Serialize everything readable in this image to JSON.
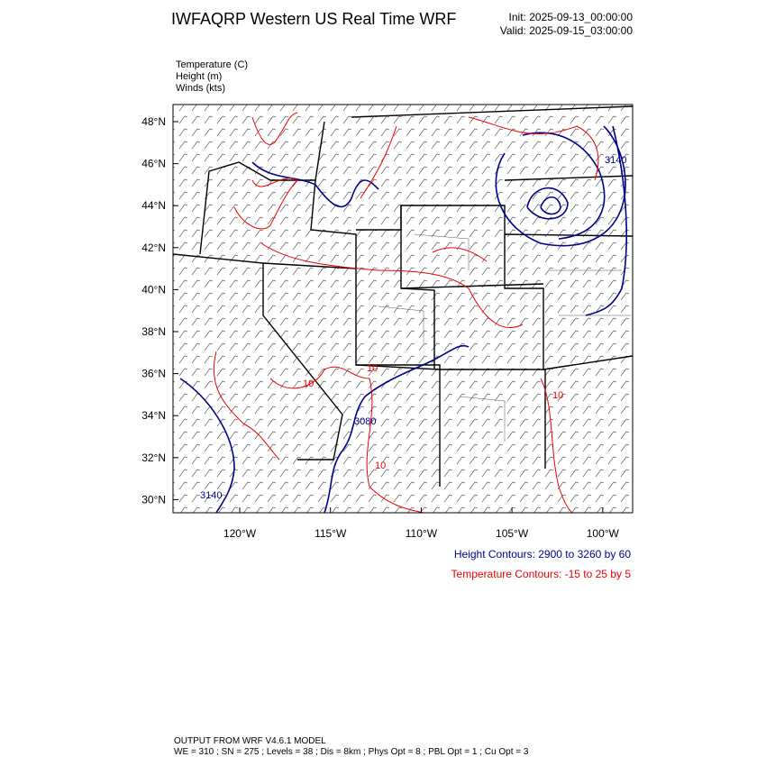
{
  "header": {
    "title": "IWFAQRP Western US Real Time WRF",
    "init": "Init: 2025-09-13_00:00:00",
    "valid": "Valid: 2025-09-15_03:00:00"
  },
  "fields": [
    "Temperature   (C)",
    "Height   (m)",
    "Winds   (kts)"
  ],
  "map": {
    "lat_labels": [
      "48°N",
      "46°N",
      "44°N",
      "42°N",
      "40°N",
      "38°N",
      "36°N",
      "34°N",
      "32°N",
      "30°N"
    ],
    "lon_labels": [
      "120°W",
      "115°W",
      "110°W",
      "105°W",
      "100°W"
    ],
    "height_contour_labels": [
      "3140",
      "3080",
      "3140"
    ],
    "temperature_contour_labels": [
      "10",
      "10",
      "10",
      "10"
    ]
  },
  "contour_info": {
    "height": "Height Contours: 2900 to 3260 by 60",
    "temperature": "Temperature Contours: -15 to 25 by 5"
  },
  "footer": {
    "line1": "OUTPUT FROM WRF V4.6.1 MODEL",
    "line2": "WE = 310 ; SN = 275 ; Levels = 38 ; Dis = 8km ; Phys Opt = 8 ; PBL Opt = 1 ; Cu Opt = 3"
  }
}
